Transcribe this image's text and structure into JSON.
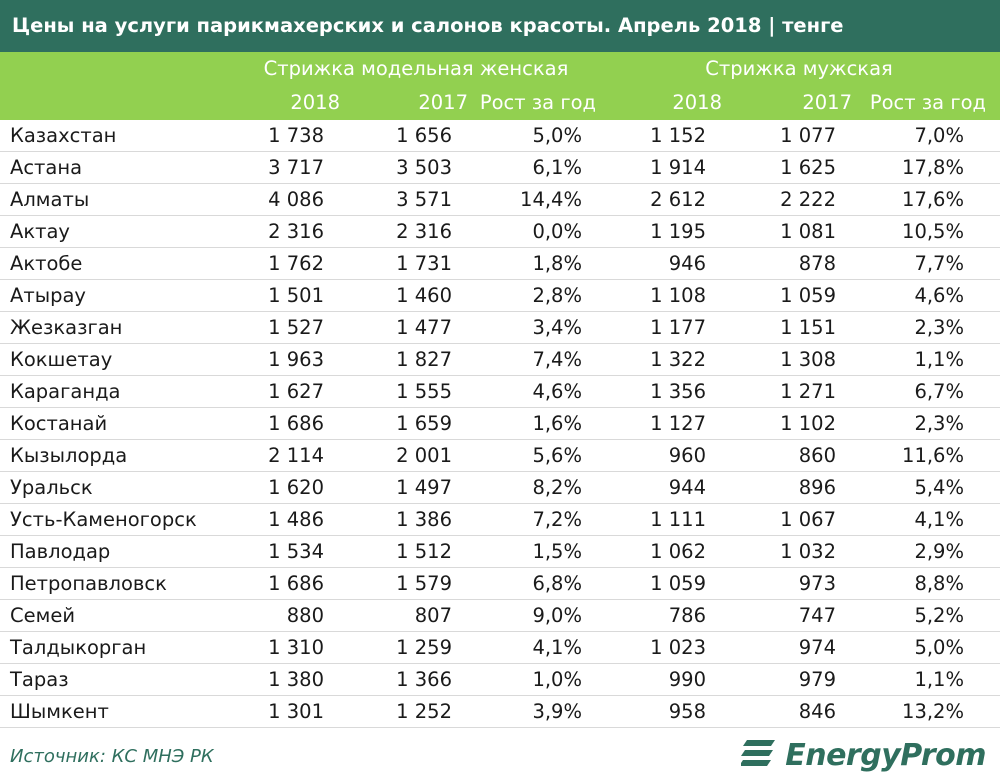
{
  "title": "Цены на услуги парикмахерских и салонов красоты. Апрель 2018 | тенге",
  "groups": [
    "Стрижка модельная женская",
    "Стрижка мужская"
  ],
  "subheaders": [
    "2018",
    "2017",
    "Рост за год",
    "2018",
    "2017",
    "Рост за год"
  ],
  "rows": [
    {
      "name": "Казахстан",
      "w2018": "1 738",
      "w2017": "1 656",
      "wg": "5,0%",
      "m2018": "1 152",
      "m2017": "1 077",
      "mg": "7,0%"
    },
    {
      "name": "Астана",
      "w2018": "3 717",
      "w2017": "3 503",
      "wg": "6,1%",
      "m2018": "1 914",
      "m2017": "1 625",
      "mg": "17,8%"
    },
    {
      "name": "Алматы",
      "w2018": "4 086",
      "w2017": "3 571",
      "wg": "14,4%",
      "m2018": "2 612",
      "m2017": "2 222",
      "mg": "17,6%"
    },
    {
      "name": "Актау",
      "w2018": "2 316",
      "w2017": "2 316",
      "wg": "0,0%",
      "m2018": "1 195",
      "m2017": "1 081",
      "mg": "10,5%"
    },
    {
      "name": "Актобе",
      "w2018": "1 762",
      "w2017": "1 731",
      "wg": "1,8%",
      "m2018": "946",
      "m2017": "878",
      "mg": "7,7%"
    },
    {
      "name": "Атырау",
      "w2018": "1 501",
      "w2017": "1 460",
      "wg": "2,8%",
      "m2018": "1 108",
      "m2017": "1 059",
      "mg": "4,6%"
    },
    {
      "name": "Жезказган",
      "w2018": "1 527",
      "w2017": "1 477",
      "wg": "3,4%",
      "m2018": "1 177",
      "m2017": "1 151",
      "mg": "2,3%"
    },
    {
      "name": "Кокшетау",
      "w2018": "1 963",
      "w2017": "1 827",
      "wg": "7,4%",
      "m2018": "1 322",
      "m2017": "1 308",
      "mg": "1,1%"
    },
    {
      "name": "Караганда",
      "w2018": "1 627",
      "w2017": "1 555",
      "wg": "4,6%",
      "m2018": "1 356",
      "m2017": "1 271",
      "mg": "6,7%"
    },
    {
      "name": "Костанай",
      "w2018": "1 686",
      "w2017": "1 659",
      "wg": "1,6%",
      "m2018": "1 127",
      "m2017": "1 102",
      "mg": "2,3%"
    },
    {
      "name": "Кызылорда",
      "w2018": "2 114",
      "w2017": "2 001",
      "wg": "5,6%",
      "m2018": "960",
      "m2017": "860",
      "mg": "11,6%"
    },
    {
      "name": "Уральск",
      "w2018": "1 620",
      "w2017": "1 497",
      "wg": "8,2%",
      "m2018": "944",
      "m2017": "896",
      "mg": "5,4%"
    },
    {
      "name": "Усть-Каменогорск",
      "w2018": "1 486",
      "w2017": "1 386",
      "wg": "7,2%",
      "m2018": "1 111",
      "m2017": "1 067",
      "mg": "4,1%"
    },
    {
      "name": "Павлодар",
      "w2018": "1 534",
      "w2017": "1 512",
      "wg": "1,5%",
      "m2018": "1 062",
      "m2017": "1 032",
      "mg": "2,9%"
    },
    {
      "name": "Петропавловск",
      "w2018": "1 686",
      "w2017": "1 579",
      "wg": "6,8%",
      "m2018": "1 059",
      "m2017": "973",
      "mg": "8,8%"
    },
    {
      "name": "Семей",
      "w2018": "880",
      "w2017": "807",
      "wg": "9,0%",
      "m2018": "786",
      "m2017": "747",
      "mg": "5,2%"
    },
    {
      "name": "Талдыкорган",
      "w2018": "1 310",
      "w2017": "1 259",
      "wg": "4,1%",
      "m2018": "1 023",
      "m2017": "974",
      "mg": "5,0%"
    },
    {
      "name": "Тараз",
      "w2018": "1 380",
      "w2017": "1 366",
      "wg": "1,0%",
      "m2018": "990",
      "m2017": "979",
      "mg": "1,1%"
    },
    {
      "name": "Шымкент",
      "w2018": "1 301",
      "w2017": "1 252",
      "wg": "3,9%",
      "m2018": "958",
      "m2017": "846",
      "mg": "13,2%"
    }
  ],
  "source": "Источник: КС МНЭ РК",
  "logo": {
    "text": "EnergyProm",
    "icon": "energyprom-logo-icon",
    "color": "#2f6f5e"
  },
  "colors": {
    "title_bg": "#2f6f5e",
    "header_bg": "#92d050"
  }
}
